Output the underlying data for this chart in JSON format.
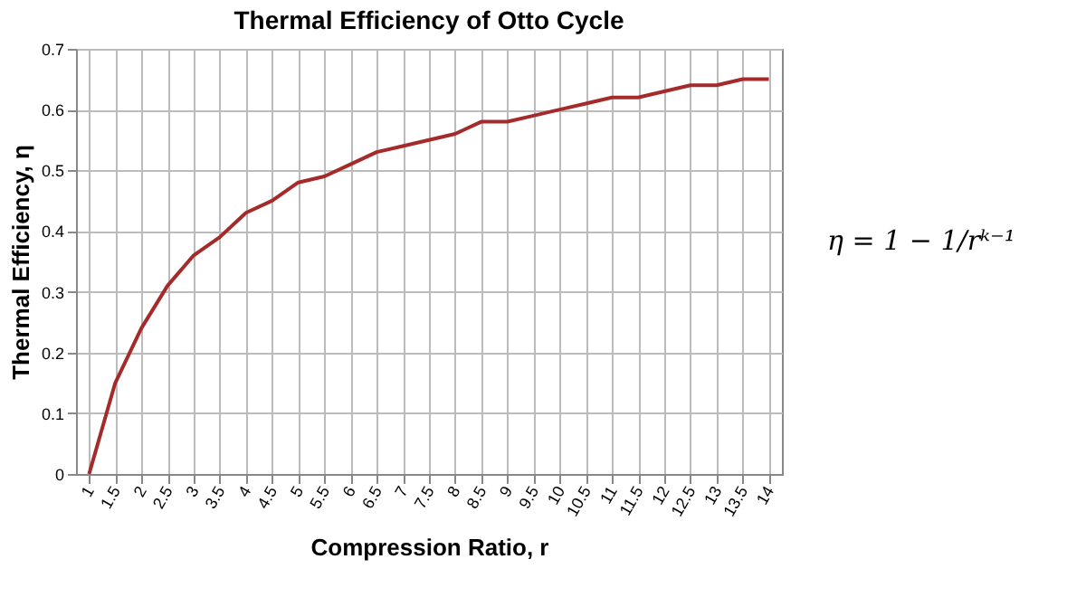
{
  "chart_data": {
    "type": "line",
    "title": "Thermal Efficiency of Otto Cycle",
    "xlabel": "Compression Ratio, r",
    "ylabel": "Thermal Efficiency, η",
    "categories": [
      "1",
      "1.5",
      "2",
      "2.5",
      "3",
      "3.5",
      "4",
      "4.5",
      "5",
      "5.5",
      "6",
      "6.5",
      "7",
      "7.5",
      "8",
      "8.5",
      "9",
      "9.5",
      "10",
      "10.5",
      "11",
      "11.5",
      "12",
      "12.5",
      "13",
      "13.5",
      "14"
    ],
    "series": [
      {
        "color": "#a52a2a",
        "values": [
          0,
          0.15,
          0.24,
          0.31,
          0.36,
          0.39,
          0.43,
          0.45,
          0.48,
          0.49,
          0.51,
          0.53,
          0.54,
          0.55,
          0.56,
          0.58,
          0.58,
          0.59,
          0.6,
          0.61,
          0.62,
          0.62,
          0.63,
          0.64,
          0.64,
          0.65,
          0.65
        ]
      }
    ],
    "ylim": [
      0,
      0.7
    ],
    "yticks": [
      0,
      0.1,
      0.2,
      0.3,
      0.4,
      0.5,
      0.6,
      0.7
    ],
    "grid": true,
    "marker": "none",
    "line_style": "solid",
    "annotations": [
      "η = 1 − 1/rᵏ⁻¹"
    ]
  }
}
